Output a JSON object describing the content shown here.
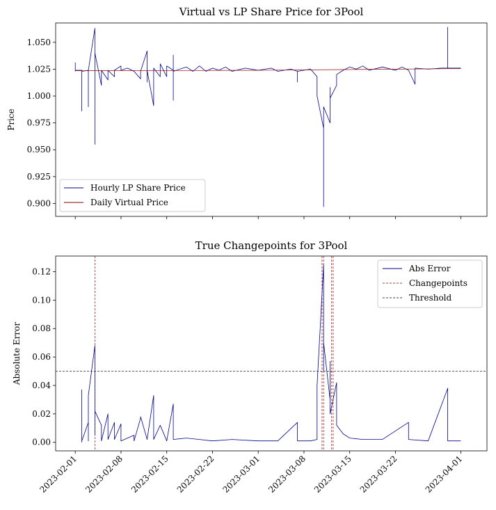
{
  "figure": {
    "colors": {
      "lp_share": "#00008b",
      "virtual": "#8b0000",
      "abs_error": "#00008b",
      "changepoints": "#8b0000",
      "threshold": "#000000"
    }
  },
  "chart_data": [
    {
      "type": "line",
      "title": "Virtual vs LP Share Price for 3Pool",
      "xlabel": "",
      "ylabel": "Price",
      "xlim": [
        "2023-01-29",
        "2023-04-05"
      ],
      "ylim": [
        0.888,
        1.068
      ],
      "yticks": [
        0.9,
        0.925,
        0.95,
        0.975,
        1.0,
        1.025,
        1.05
      ],
      "ytick_labels": [
        "0.900",
        "0.925",
        "0.950",
        "0.975",
        "1.000",
        "1.025",
        "1.050"
      ],
      "xticks": [
        "2023-02-01",
        "2023-02-08",
        "2023-02-15",
        "2023-02-22",
        "2023-03-01",
        "2023-03-08",
        "2023-03-15",
        "2023-03-22",
        "2023-04-01"
      ],
      "grid": false,
      "legend_position": "lower-left",
      "series": [
        {
          "name": "Hourly LP Share Price",
          "style": "solid",
          "points": [
            [
              "2023-02-01",
              1.023
            ],
            [
              "2023-02-01",
              1.031
            ],
            [
              "2023-02-01",
              1.024
            ],
            [
              "2023-02-02",
              1.024
            ],
            [
              "2023-02-02",
              0.986
            ],
            [
              "2023-02-02",
              1.023
            ],
            [
              "2023-02-03",
              1.024
            ],
            [
              "2023-02-03",
              1.007
            ],
            [
              "2023-02-03",
              1.024
            ],
            [
              "2023-02-03",
              0.99
            ],
            [
              "2023-02-03",
              1.024
            ],
            [
              "2023-02-04",
              1.063
            ],
            [
              "2023-02-04",
              0.955
            ],
            [
              "2023-02-04",
              1.044
            ],
            [
              "2023-02-04",
              1.003
            ],
            [
              "2023-02-04",
              1.04
            ],
            [
              "2023-02-05",
              1.01
            ],
            [
              "2023-02-05",
              1.024
            ],
            [
              "2023-02-06",
              1.015
            ],
            [
              "2023-02-06",
              1.024
            ],
            [
              "2023-02-07",
              1.018
            ],
            [
              "2023-02-07",
              1.024
            ],
            [
              "2023-02-08",
              1.028
            ],
            [
              "2023-02-08",
              1.024
            ],
            [
              "2023-02-09",
              1.026
            ],
            [
              "2023-02-10",
              1.023
            ],
            [
              "2023-02-11",
              1.016
            ],
            [
              "2023-02-11",
              1.023
            ],
            [
              "2023-02-12",
              1.042
            ],
            [
              "2023-02-12",
              1.013
            ],
            [
              "2023-02-12",
              1.024
            ],
            [
              "2023-02-13",
              0.991
            ],
            [
              "2023-02-13",
              1.026
            ],
            [
              "2023-02-14",
              1.018
            ],
            [
              "2023-02-14",
              1.03
            ],
            [
              "2023-02-15",
              1.018
            ],
            [
              "2023-02-15",
              1.028
            ],
            [
              "2023-02-16",
              1.024
            ],
            [
              "2023-02-16",
              0.996
            ],
            [
              "2023-02-16",
              1.038
            ],
            [
              "2023-02-16",
              1.023
            ],
            [
              "2023-02-18",
              1.027
            ],
            [
              "2023-02-19",
              1.023
            ],
            [
              "2023-02-20",
              1.028
            ],
            [
              "2023-02-21",
              1.023
            ],
            [
              "2023-02-22",
              1.026
            ],
            [
              "2023-02-23",
              1.024
            ],
            [
              "2023-02-24",
              1.027
            ],
            [
              "2023-02-25",
              1.023
            ],
            [
              "2023-02-27",
              1.026
            ],
            [
              "2023-03-01",
              1.024
            ],
            [
              "2023-03-03",
              1.026
            ],
            [
              "2023-03-04",
              1.023
            ],
            [
              "2023-03-06",
              1.025
            ],
            [
              "2023-03-07",
              1.023
            ],
            [
              "2023-03-07",
              1.013
            ],
            [
              "2023-03-07",
              1.023
            ],
            [
              "2023-03-09",
              1.025
            ],
            [
              "2023-03-10",
              1.018
            ],
            [
              "2023-03-10",
              1.0
            ],
            [
              "2023-03-11",
              0.97
            ],
            [
              "2023-03-11",
              0.94
            ],
            [
              "2023-03-11",
              0.897
            ],
            [
              "2023-03-11",
              0.932
            ],
            [
              "2023-03-11",
              0.922
            ],
            [
              "2023-03-11",
              0.96
            ],
            [
              "2023-03-11",
              0.99
            ],
            [
              "2023-03-12",
              0.975
            ],
            [
              "2023-03-12",
              1.008
            ],
            [
              "2023-03-12",
              0.985
            ],
            [
              "2023-03-12",
              1.008
            ],
            [
              "2023-03-12",
              0.978
            ],
            [
              "2023-03-12",
              1.004
            ],
            [
              "2023-03-12",
              0.998
            ],
            [
              "2023-03-13",
              1.01
            ],
            [
              "2023-03-13",
              1.02
            ],
            [
              "2023-03-14",
              1.024
            ],
            [
              "2023-03-15",
              1.027
            ],
            [
              "2023-03-16",
              1.025
            ],
            [
              "2023-03-17",
              1.028
            ],
            [
              "2023-03-18",
              1.024
            ],
            [
              "2023-03-20",
              1.027
            ],
            [
              "2023-03-22",
              1.024
            ],
            [
              "2023-03-23",
              1.027
            ],
            [
              "2023-03-24",
              1.024
            ],
            [
              "2023-03-25",
              1.011
            ],
            [
              "2023-03-25",
              1.026
            ],
            [
              "2023-03-27",
              1.025
            ],
            [
              "2023-03-29",
              1.026
            ],
            [
              "2023-03-30",
              1.026
            ],
            [
              "2023-03-30",
              1.064
            ],
            [
              "2023-03-30",
              1.026
            ],
            [
              "2023-04-01",
              1.026
            ]
          ]
        },
        {
          "name": "Daily Virtual Price",
          "style": "solid",
          "points": [
            [
              "2023-02-01",
              1.0235
            ],
            [
              "2023-03-01",
              1.024
            ],
            [
              "2023-04-01",
              1.0255
            ]
          ]
        }
      ]
    },
    {
      "type": "line",
      "title": "True Changepoints for 3Pool",
      "xlabel": "",
      "ylabel": "Absolute Error",
      "xlim": [
        "2023-01-29",
        "2023-04-05"
      ],
      "ylim": [
        -0.006,
        0.131
      ],
      "yticks": [
        0.0,
        0.02,
        0.04,
        0.06,
        0.08,
        0.1,
        0.12
      ],
      "ytick_labels": [
        "0.00",
        "0.02",
        "0.04",
        "0.06",
        "0.08",
        "0.10",
        "0.12"
      ],
      "xticks": [
        "2023-02-01",
        "2023-02-08",
        "2023-02-15",
        "2023-02-22",
        "2023-03-01",
        "2023-03-08",
        "2023-03-15",
        "2023-03-22",
        "2023-04-01"
      ],
      "grid": false,
      "legend_position": "upper-right",
      "threshold": 0.05,
      "changepoints": [
        "2023-02-04",
        "2023-03-11",
        "2023-03-11",
        "2023-03-12",
        "2023-03-12"
      ],
      "series": [
        {
          "name": "Abs Error",
          "style": "solid",
          "points": [
            [
              "2023-02-02",
              0.0
            ],
            [
              "2023-02-02",
              0.037
            ],
            [
              "2023-02-02",
              0.001
            ],
            [
              "2023-02-03",
              0.014
            ],
            [
              "2023-02-03",
              0.001
            ],
            [
              "2023-02-03",
              0.033
            ],
            [
              "2023-02-04",
              0.068
            ],
            [
              "2023-02-04",
              0.03
            ],
            [
              "2023-02-04",
              0.005
            ],
            [
              "2023-02-04",
              0.022
            ],
            [
              "2023-02-05",
              0.012
            ],
            [
              "2023-02-05",
              0.001
            ],
            [
              "2023-02-06",
              0.02
            ],
            [
              "2023-02-06",
              0.002
            ],
            [
              "2023-02-07",
              0.014
            ],
            [
              "2023-02-07",
              0.002
            ],
            [
              "2023-02-08",
              0.013
            ],
            [
              "2023-02-08",
              0.001
            ],
            [
              "2023-02-10",
              0.005
            ],
            [
              "2023-02-10",
              0.001
            ],
            [
              "2023-02-11",
              0.017
            ],
            [
              "2023-02-11",
              0.018
            ],
            [
              "2023-02-12",
              0.002
            ],
            [
              "2023-02-13",
              0.033
            ],
            [
              "2023-02-13",
              0.002
            ],
            [
              "2023-02-14",
              0.012
            ],
            [
              "2023-02-15",
              0.001
            ],
            [
              "2023-02-16",
              0.027
            ],
            [
              "2023-02-16",
              0.002
            ],
            [
              "2023-02-18",
              0.003
            ],
            [
              "2023-02-20",
              0.002
            ],
            [
              "2023-02-22",
              0.001
            ],
            [
              "2023-02-25",
              0.002
            ],
            [
              "2023-03-01",
              0.001
            ],
            [
              "2023-03-04",
              0.001
            ],
            [
              "2023-03-07",
              0.014
            ],
            [
              "2023-03-07",
              0.001
            ],
            [
              "2023-03-09",
              0.001
            ],
            [
              "2023-03-10",
              0.002
            ],
            [
              "2023-03-10",
              0.04
            ],
            [
              "2023-03-11",
              0.125
            ],
            [
              "2023-03-11",
              0.05
            ],
            [
              "2023-03-11",
              0.1
            ],
            [
              "2023-03-11",
              0.07
            ],
            [
              "2023-03-12",
              0.03
            ],
            [
              "2023-03-12",
              0.057
            ],
            [
              "2023-03-12",
              0.02
            ],
            [
              "2023-03-13",
              0.042
            ],
            [
              "2023-03-13",
              0.012
            ],
            [
              "2023-03-14",
              0.006
            ],
            [
              "2023-03-15",
              0.003
            ],
            [
              "2023-03-17",
              0.002
            ],
            [
              "2023-03-20",
              0.002
            ],
            [
              "2023-03-24",
              0.014
            ],
            [
              "2023-03-24",
              0.002
            ],
            [
              "2023-03-27",
              0.001
            ],
            [
              "2023-03-30",
              0.038
            ],
            [
              "2023-03-30",
              0.001
            ],
            [
              "2023-04-01",
              0.001
            ]
          ]
        }
      ],
      "legend_entries": [
        {
          "name": "Abs Error",
          "style": "solid"
        },
        {
          "name": "Changepoints",
          "style": "dashed"
        },
        {
          "name": "Threshold",
          "style": "dashed"
        }
      ]
    }
  ]
}
